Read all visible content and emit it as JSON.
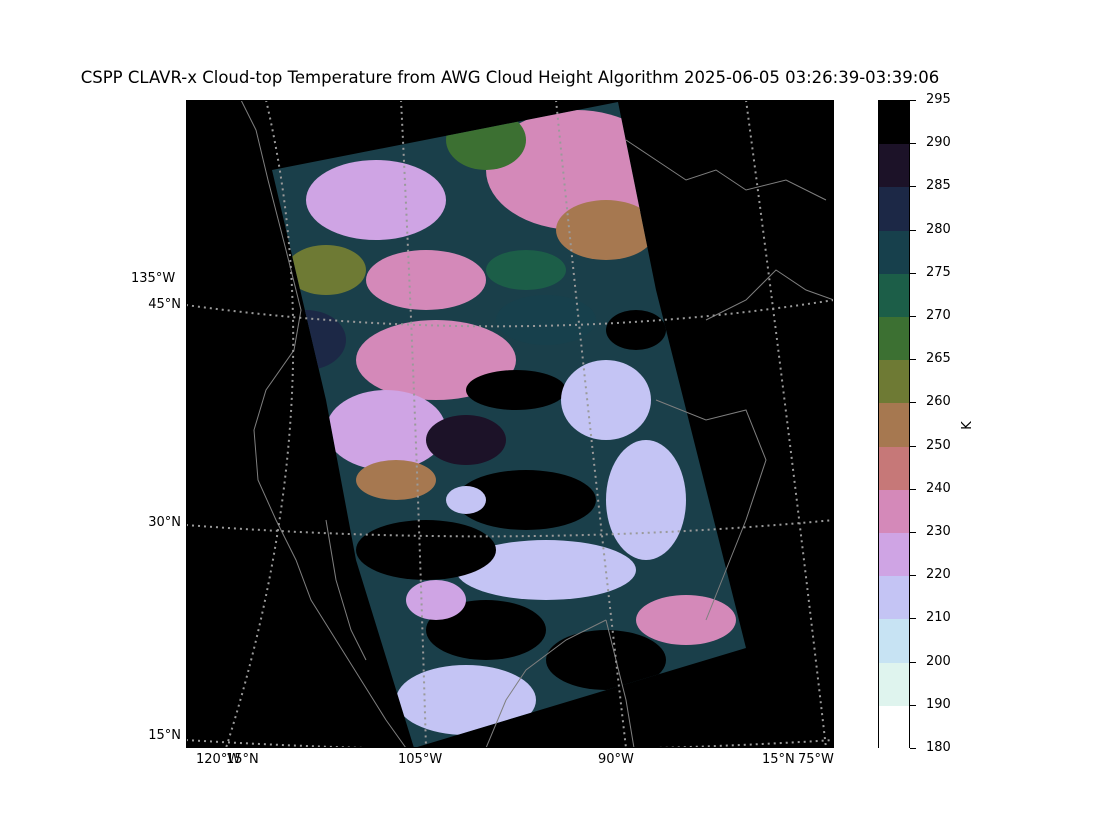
{
  "title": "CSPP CLAVR-x Cloud-top Temperature from AWG Cloud Height Algorithm 2025-06-05 03:26:39-03:39:06",
  "map": {
    "lat_labels": [
      "45°N",
      "30°N",
      "15°N"
    ],
    "left_lon_label": "135°W",
    "bottom_labels": [
      "120°W",
      "15°N",
      "105°W",
      "90°W",
      "15°N",
      "75°W"
    ],
    "colors": {
      "land_outline": "#7f7f7f",
      "graticule": "#9a9a9a",
      "background": "#000000"
    }
  },
  "colorbar": {
    "unit": "K",
    "ticks": [
      "295",
      "290",
      "285",
      "280",
      "275",
      "270",
      "265",
      "260",
      "250",
      "240",
      "230",
      "220",
      "210",
      "200",
      "190",
      "180"
    ],
    "colors": [
      "#000000",
      "#1c1228",
      "#1c2846",
      "#17404c",
      "#1c5e48",
      "#3c7032",
      "#6e7a34",
      "#a67850",
      "#c67878",
      "#d489b9",
      "#cfa4e4",
      "#c4c4f4",
      "#c7e3f3",
      "#dff4ee",
      "#ffffff"
    ]
  }
}
